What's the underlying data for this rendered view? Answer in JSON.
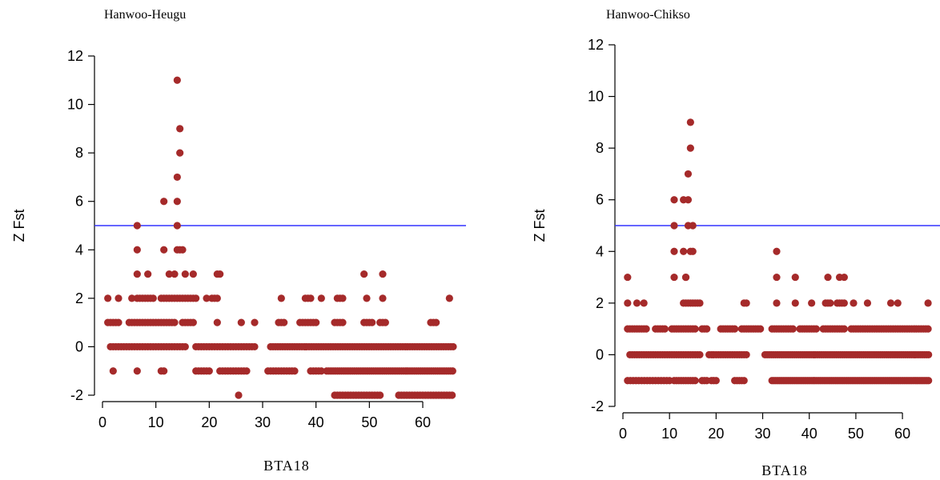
{
  "chart_data": [
    {
      "type": "scatter",
      "title": "Hanwoo-Heugu",
      "xlabel": "BTA18",
      "ylabel": "Z Fst",
      "xlim": [
        0,
        66
      ],
      "ylim": [
        -2,
        12
      ],
      "xticks": [
        0,
        10,
        20,
        30,
        40,
        50,
        60
      ],
      "yticks": [
        -2,
        0,
        2,
        4,
        6,
        8,
        10,
        12
      ],
      "threshold": 5,
      "point_color": "#a52a2a",
      "line_color": "#3333ff",
      "grid": false,
      "series": [
        {
          "ranges": [
            {
              "y": 0,
              "x0": 1.5,
              "x1": 15.5,
              "step": 0.5
            },
            {
              "y": 0,
              "x0": 17.5,
              "x1": 28.5,
              "step": 0.5
            },
            {
              "y": 0,
              "x0": 31.5,
              "x1": 65.8,
              "step": 0.45
            },
            {
              "y": 1,
              "x0": 1.0,
              "x1": 3.0,
              "step": 0.5
            },
            {
              "y": 1,
              "x0": 5.0,
              "x1": 13.5,
              "step": 0.5
            },
            {
              "y": 1,
              "x0": 15.0,
              "x1": 17.0,
              "step": 0.5
            },
            {
              "y": 1,
              "x0": 33.0,
              "x1": 34.0,
              "step": 0.5
            },
            {
              "y": 1,
              "x0": 37.0,
              "x1": 40.0,
              "step": 0.5
            },
            {
              "y": 1,
              "x0": 43.5,
              "x1": 45.0,
              "step": 0.5
            },
            {
              "y": 1,
              "x0": 49.0,
              "x1": 50.5,
              "step": 0.5
            },
            {
              "y": 1,
              "x0": 52.0,
              "x1": 53.0,
              "step": 0.5
            },
            {
              "y": 1,
              "x0": 61.5,
              "x1": 62.5,
              "step": 0.5
            },
            {
              "y": 2,
              "x0": 6.5,
              "x1": 9.5,
              "step": 0.5
            },
            {
              "y": 2,
              "x0": 11.0,
              "x1": 17.5,
              "step": 0.5
            },
            {
              "y": 2,
              "x0": 20.5,
              "x1": 21.5,
              "step": 0.5
            },
            {
              "y": 2,
              "x0": 38.0,
              "x1": 39.0,
              "step": 0.5
            },
            {
              "y": 2,
              "x0": 44.0,
              "x1": 45.0,
              "step": 0.5
            },
            {
              "y": -1,
              "x0": 17.5,
              "x1": 20.0,
              "step": 0.5
            },
            {
              "y": -1,
              "x0": 22.0,
              "x1": 27.0,
              "step": 0.5
            },
            {
              "y": -1,
              "x0": 31.0,
              "x1": 36.0,
              "step": 0.5
            },
            {
              "y": -1,
              "x0": 39.0,
              "x1": 41.0,
              "step": 0.5
            },
            {
              "y": -1,
              "x0": 42.0,
              "x1": 65.8,
              "step": 0.4
            },
            {
              "y": -2,
              "x0": 43.5,
              "x1": 52.0,
              "step": 0.5
            },
            {
              "y": -2,
              "x0": 55.5,
              "x1": 65.8,
              "step": 0.5
            }
          ],
          "points": [
            [
              2.0,
              -1
            ],
            [
              6.5,
              -1
            ],
            [
              11.0,
              -1
            ],
            [
              11.5,
              -1
            ],
            [
              1.0,
              2
            ],
            [
              3.0,
              2
            ],
            [
              5.5,
              2
            ],
            [
              19.5,
              2
            ],
            [
              33.5,
              2
            ],
            [
              41.0,
              2
            ],
            [
              49.5,
              2
            ],
            [
              52.5,
              2
            ],
            [
              65.0,
              2
            ],
            [
              6.5,
              3
            ],
            [
              6.5,
              4
            ],
            [
              6.5,
              5
            ],
            [
              8.5,
              3
            ],
            [
              11.5,
              4
            ],
            [
              11.5,
              6
            ],
            [
              12.5,
              3
            ],
            [
              13.5,
              3
            ],
            [
              14.0,
              4
            ],
            [
              14.0,
              5
            ],
            [
              14.0,
              6
            ],
            [
              14.0,
              7
            ],
            [
              14.5,
              4
            ],
            [
              14.5,
              8
            ],
            [
              14.5,
              9
            ],
            [
              14.0,
              11
            ],
            [
              15.0,
              4
            ],
            [
              15.5,
              3
            ],
            [
              17.0,
              3
            ],
            [
              21.5,
              3
            ],
            [
              22.0,
              3
            ],
            [
              49.0,
              3
            ],
            [
              52.5,
              3
            ],
            [
              21.5,
              1
            ],
            [
              28.5,
              1
            ],
            [
              26.0,
              1
            ],
            [
              25.5,
              -2
            ]
          ]
        }
      ]
    },
    {
      "type": "scatter",
      "title": "Hanwoo-Chikso",
      "xlabel": "BTA18",
      "ylabel": "Z Fst",
      "xlim": [
        0,
        66
      ],
      "ylim": [
        -2,
        12
      ],
      "xticks": [
        0,
        10,
        20,
        30,
        40,
        50,
        60
      ],
      "yticks": [
        -2,
        0,
        2,
        4,
        6,
        8,
        10,
        12
      ],
      "threshold": 5,
      "point_color": "#a52a2a",
      "line_color": "#3333ff",
      "grid": false,
      "series": [
        {
          "ranges": [
            {
              "y": 0,
              "x0": 1.5,
              "x1": 16.5,
              "step": 0.5
            },
            {
              "y": 0,
              "x0": 18.5,
              "x1": 26.5,
              "step": 0.5
            },
            {
              "y": 0,
              "x0": 30.5,
              "x1": 65.8,
              "step": 0.45
            },
            {
              "y": 1,
              "x0": 1.0,
              "x1": 5.0,
              "step": 0.5
            },
            {
              "y": 1,
              "x0": 7.0,
              "x1": 9.0,
              "step": 0.5
            },
            {
              "y": 1,
              "x0": 10.5,
              "x1": 15.0,
              "step": 0.5
            },
            {
              "y": 1,
              "x0": 17.0,
              "x1": 18.0,
              "step": 0.5
            },
            {
              "y": 1,
              "x0": 21.0,
              "x1": 24.0,
              "step": 0.5
            },
            {
              "y": 1,
              "x0": 25.5,
              "x1": 29.5,
              "step": 0.5
            },
            {
              "y": 1,
              "x0": 32.0,
              "x1": 36.5,
              "step": 0.5
            },
            {
              "y": 1,
              "x0": 38.0,
              "x1": 41.5,
              "step": 0.5
            },
            {
              "y": 1,
              "x0": 43.0,
              "x1": 47.5,
              "step": 0.5
            },
            {
              "y": 1,
              "x0": 49.0,
              "x1": 65.8,
              "step": 0.5
            },
            {
              "y": -1,
              "x0": 1.0,
              "x1": 10.0,
              "step": 0.6
            },
            {
              "y": -1,
              "x0": 11.0,
              "x1": 15.5,
              "step": 0.5
            },
            {
              "y": -1,
              "x0": 17.0,
              "x1": 18.0,
              "step": 0.5
            },
            {
              "y": -1,
              "x0": 19.0,
              "x1": 20.0,
              "step": 0.5
            },
            {
              "y": -1,
              "x0": 24.0,
              "x1": 26.0,
              "step": 0.5
            },
            {
              "y": -1,
              "x0": 32.0,
              "x1": 65.8,
              "step": 0.4
            },
            {
              "y": 2,
              "x0": 13.0,
              "x1": 16.5,
              "step": 0.5
            },
            {
              "y": 2,
              "x0": 43.5,
              "x1": 44.5,
              "step": 0.5
            },
            {
              "y": 2,
              "x0": 46.0,
              "x1": 47.5,
              "step": 0.5
            }
          ],
          "points": [
            [
              1.0,
              3
            ],
            [
              1.0,
              2
            ],
            [
              3.0,
              2
            ],
            [
              4.5,
              2
            ],
            [
              11.0,
              3
            ],
            [
              11.0,
              4
            ],
            [
              11.0,
              5
            ],
            [
              11.0,
              6
            ],
            [
              13.0,
              4
            ],
            [
              13.5,
              3
            ],
            [
              13.0,
              6
            ],
            [
              13.5,
              3
            ],
            [
              14.0,
              5
            ],
            [
              14.0,
              6
            ],
            [
              14.0,
              7
            ],
            [
              14.5,
              8
            ],
            [
              14.5,
              9
            ],
            [
              14.5,
              4
            ],
            [
              15.0,
              5
            ],
            [
              15.0,
              4
            ],
            [
              15.5,
              1
            ],
            [
              26.0,
              2
            ],
            [
              26.5,
              2
            ],
            [
              33.0,
              4
            ],
            [
              33.0,
              3
            ],
            [
              33.0,
              2
            ],
            [
              37.0,
              3
            ],
            [
              37.0,
              2
            ],
            [
              40.5,
              2
            ],
            [
              44.0,
              3
            ],
            [
              46.5,
              3
            ],
            [
              47.5,
              3
            ],
            [
              49.5,
              2
            ],
            [
              52.5,
              2
            ],
            [
              57.5,
              2
            ],
            [
              59.0,
              2
            ],
            [
              65.5,
              2
            ]
          ]
        }
      ]
    }
  ]
}
